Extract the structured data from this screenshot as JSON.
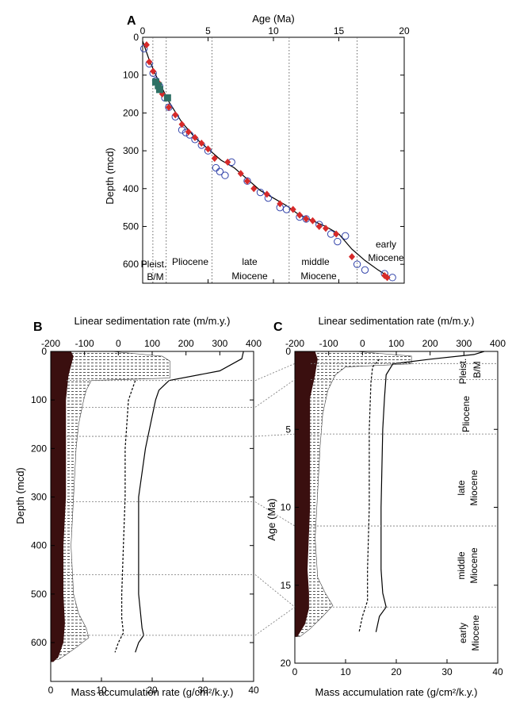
{
  "chart_data": [
    {
      "panel": "A",
      "type": "scatter",
      "xlabel": "Age (Ma)",
      "ylabel": "Depth (mcd)",
      "xlim": [
        0,
        20
      ],
      "ylim": [
        0,
        650
      ],
      "xticks": [
        "0",
        "5",
        "10",
        "15",
        "20"
      ],
      "yticks": [
        "0",
        "100",
        "200",
        "300",
        "400",
        "500",
        "600"
      ],
      "boundaries_age": [
        0.78,
        1.8,
        5.3,
        11.2,
        16.4
      ],
      "epoch_labels": [
        "Pleist.",
        "B/M",
        "Pliocene",
        "late",
        "Miocene",
        "middle",
        "Miocene",
        "early",
        "Miocene"
      ],
      "series": [
        {
          "marker": "circle",
          "points": [
            [
              0.1,
              30
            ],
            [
              0.5,
              70
            ],
            [
              0.8,
              95
            ],
            [
              1.0,
              115
            ],
            [
              1.3,
              130
            ],
            [
              1.7,
              160
            ],
            [
              2.0,
              185
            ],
            [
              2.5,
              210
            ],
            [
              3.0,
              245
            ],
            [
              3.3,
              252
            ],
            [
              3.6,
              258
            ],
            [
              4.0,
              270
            ],
            [
              4.5,
              285
            ],
            [
              5.0,
              300
            ],
            [
              5.6,
              345
            ],
            [
              5.9,
              355
            ],
            [
              6.3,
              365
            ],
            [
              6.8,
              330
            ],
            [
              8.0,
              380
            ],
            [
              9.0,
              410
            ],
            [
              9.6,
              425
            ],
            [
              10.5,
              450
            ],
            [
              11.0,
              455
            ],
            [
              12.0,
              475
            ],
            [
              12.5,
              480
            ],
            [
              13.5,
              495
            ],
            [
              14.4,
              520
            ],
            [
              14.9,
              540
            ],
            [
              15.5,
              525
            ],
            [
              16.4,
              600
            ],
            [
              17.0,
              615
            ],
            [
              18.5,
              625
            ],
            [
              19.1,
              635
            ]
          ]
        },
        {
          "marker": "diamond",
          "points": [
            [
              0.3,
              20
            ],
            [
              0.5,
              65
            ],
            [
              0.8,
              90
            ],
            [
              1.2,
              120
            ],
            [
              1.5,
              150
            ],
            [
              2.0,
              185
            ],
            [
              2.5,
              205
            ],
            [
              3.0,
              230
            ],
            [
              3.5,
              250
            ],
            [
              4.0,
              265
            ],
            [
              4.5,
              280
            ],
            [
              5.0,
              295
            ],
            [
              5.5,
              320
            ],
            [
              6.5,
              330
            ],
            [
              7.5,
              360
            ],
            [
              8.0,
              380
            ],
            [
              8.5,
              400
            ],
            [
              9.5,
              415
            ],
            [
              10.5,
              440
            ],
            [
              11.5,
              455
            ],
            [
              12.0,
              470
            ],
            [
              12.5,
              480
            ],
            [
              13.0,
              485
            ],
            [
              13.5,
              500
            ],
            [
              14.0,
              505
            ],
            [
              14.8,
              520
            ],
            [
              16.0,
              580
            ],
            [
              18.5,
              630
            ],
            [
              18.7,
              635
            ]
          ]
        },
        {
          "marker": "square",
          "points": [
            [
              1.0,
              118
            ],
            [
              1.2,
              128
            ],
            [
              1.3,
              138
            ],
            [
              1.9,
              160
            ]
          ]
        }
      ],
      "curve": [
        [
          0,
          10
        ],
        [
          0.5,
          60
        ],
        [
          1.0,
          100
        ],
        [
          2.0,
          170
        ],
        [
          3.0,
          225
        ],
        [
          4.0,
          265
        ],
        [
          5.0,
          295
        ],
        [
          6.0,
          325
        ],
        [
          7.0,
          345
        ],
        [
          8.0,
          375
        ],
        [
          9.0,
          405
        ],
        [
          10.0,
          425
        ],
        [
          11.0,
          445
        ],
        [
          12.0,
          470
        ],
        [
          13.0,
          485
        ],
        [
          14.0,
          500
        ],
        [
          15.0,
          520
        ],
        [
          16.0,
          560
        ],
        [
          17.0,
          590
        ],
        [
          18.0,
          615
        ],
        [
          18.9,
          635
        ]
      ]
    },
    {
      "panel": "B",
      "type": "area",
      "top_label": "Linear sedimentation rate (m/m.y.)",
      "xlabel": "Mass accumulation rate (g/cm²/k.y.)",
      "ylabel": "Depth (mcd)",
      "top_xlim": [
        -200,
        400
      ],
      "top_xticks": [
        "-200",
        "-100",
        "0",
        "100",
        "200",
        "300",
        "400"
      ],
      "xlim": [
        0,
        40
      ],
      "xticks": [
        "0",
        "10",
        "20",
        "30",
        "40"
      ],
      "ylim": [
        0,
        680
      ],
      "yticks": [
        "0",
        "100",
        "200",
        "300",
        "400",
        "500",
        "600"
      ],
      "boundaries_depth": [
        60,
        115,
        175,
        310,
        460,
        585
      ],
      "dark_fill_profile": [
        [
          0,
          4.0
        ],
        [
          10,
          4.5
        ],
        [
          30,
          4.0
        ],
        [
          50,
          3.5
        ],
        [
          100,
          3.0
        ],
        [
          200,
          3.0
        ],
        [
          300,
          3.0
        ],
        [
          400,
          2.5
        ],
        [
          500,
          2.5
        ],
        [
          560,
          2.8
        ],
        [
          600,
          2.5
        ],
        [
          630,
          1.5
        ],
        [
          640,
          0.5
        ]
      ],
      "dotted_fill_profile": [
        [
          0,
          12
        ],
        [
          10,
          22
        ],
        [
          20,
          23.5
        ],
        [
          40,
          23.5
        ],
        [
          55,
          23.5
        ],
        [
          60,
          8
        ],
        [
          80,
          7
        ],
        [
          100,
          6.5
        ],
        [
          150,
          5.5
        ],
        [
          200,
          5.0
        ],
        [
          300,
          4.5
        ],
        [
          400,
          4.0
        ],
        [
          500,
          4.5
        ],
        [
          540,
          5.5
        ],
        [
          570,
          7.0
        ],
        [
          590,
          7.5
        ],
        [
          610,
          5.0
        ],
        [
          625,
          3.0
        ],
        [
          635,
          1.5
        ]
      ],
      "solid_line_lsr": [
        [
          0,
          370
        ],
        [
          15,
          365
        ],
        [
          40,
          300
        ],
        [
          60,
          150
        ],
        [
          80,
          120
        ],
        [
          100,
          110
        ],
        [
          150,
          95
        ],
        [
          200,
          80
        ],
        [
          250,
          70
        ],
        [
          300,
          60
        ],
        [
          400,
          60
        ],
        [
          500,
          60
        ],
        [
          570,
          70
        ],
        [
          585,
          75
        ],
        [
          600,
          60
        ],
        [
          620,
          50
        ]
      ],
      "dashed_line_lsr": [
        [
          60,
          50
        ],
        [
          80,
          40
        ],
        [
          100,
          30
        ],
        [
          150,
          25
        ],
        [
          200,
          20
        ],
        [
          300,
          20
        ],
        [
          400,
          15
        ],
        [
          500,
          10
        ],
        [
          550,
          10
        ],
        [
          580,
          15
        ],
        [
          600,
          0
        ],
        [
          620,
          -10
        ]
      ]
    },
    {
      "panel": "C",
      "type": "area",
      "top_label": "Linear sedimentation rate (m/m.y.)",
      "xlabel": "Mass accumulation rate (g/cm²/k.y.)",
      "ylabel": "Age (Ma)",
      "top_xlim": [
        -200,
        400
      ],
      "top_xticks": [
        "-200",
        "-100",
        "0",
        "100",
        "200",
        "300",
        "400"
      ],
      "xlim": [
        0,
        40
      ],
      "xticks": [
        "0",
        "10",
        "20",
        "30",
        "40"
      ],
      "ylim": [
        0,
        20
      ],
      "yticks": [
        "0",
        "5",
        "10",
        "15",
        "20"
      ],
      "boundaries_age": [
        0.78,
        1.8,
        5.3,
        11.2,
        16.4
      ],
      "epoch_labels": [
        "Pleist.",
        "B/M",
        "Pliocene",
        "late",
        "Miocene",
        "middle",
        "Miocene",
        "early",
        "Miocene"
      ],
      "dark_fill_profile": [
        [
          0,
          4.0
        ],
        [
          0.5,
          4.5
        ],
        [
          1.5,
          4.0
        ],
        [
          3,
          3.0
        ],
        [
          6,
          3.0
        ],
        [
          10,
          3.0
        ],
        [
          14,
          2.5
        ],
        [
          15.5,
          2.8
        ],
        [
          16.5,
          2.8
        ],
        [
          17.5,
          2.0
        ],
        [
          18.3,
          0.5
        ]
      ],
      "dotted_fill_profile": [
        [
          0,
          12
        ],
        [
          0.3,
          23
        ],
        [
          0.8,
          23
        ],
        [
          1.0,
          10
        ],
        [
          1.5,
          8
        ],
        [
          2.5,
          6.5
        ],
        [
          4,
          5.5
        ],
        [
          6,
          5.0
        ],
        [
          9,
          4.5
        ],
        [
          12,
          4.0
        ],
        [
          14.5,
          4.5
        ],
        [
          15.5,
          6.0
        ],
        [
          16.3,
          7.5
        ],
        [
          17,
          5.5
        ],
        [
          17.8,
          3.0
        ],
        [
          18.3,
          1.0
        ]
      ],
      "solid_line_lsr": [
        [
          0,
          360
        ],
        [
          0.2,
          330
        ],
        [
          0.5,
          200
        ],
        [
          0.8,
          90
        ],
        [
          1.5,
          70
        ],
        [
          3,
          65
        ],
        [
          5,
          60
        ],
        [
          10,
          55
        ],
        [
          14,
          55
        ],
        [
          15.5,
          60
        ],
        [
          16.4,
          70
        ],
        [
          17,
          50
        ],
        [
          18,
          40
        ]
      ],
      "dashed_line_lsr": [
        [
          0.5,
          50
        ],
        [
          1.0,
          30
        ],
        [
          2,
          25
        ],
        [
          5,
          20
        ],
        [
          10,
          20
        ],
        [
          14,
          15
        ],
        [
          16,
          15
        ],
        [
          17,
          0
        ],
        [
          18,
          -10
        ]
      ]
    }
  ]
}
